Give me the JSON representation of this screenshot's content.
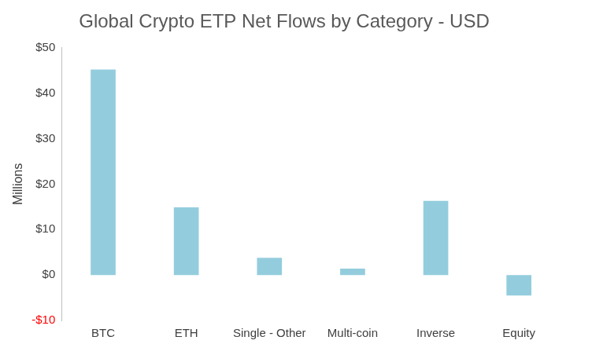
{
  "chart_data": {
    "type": "bar",
    "title": "Global Crypto ETP Net Flows by Category - USD",
    "y_label": "Millions",
    "categories": [
      "BTC",
      "ETH",
      "Single - Other",
      "Multi-coin",
      "Inverse",
      "Equity"
    ],
    "values": [
      45.2,
      14.9,
      3.8,
      1.4,
      16.3,
      -4.5
    ],
    "color": "#93CDDD",
    "ylim": [
      -10,
      50
    ],
    "yticks": [
      {
        "value": -10,
        "label": "-$10"
      },
      {
        "value": 0,
        "label": "$0"
      },
      {
        "value": 10,
        "label": "$10"
      },
      {
        "value": 20,
        "label": "$20"
      },
      {
        "value": 30,
        "label": "$30"
      },
      {
        "value": 40,
        "label": "$40"
      },
      {
        "value": 50,
        "label": "$50"
      }
    ],
    "grid": false
  }
}
